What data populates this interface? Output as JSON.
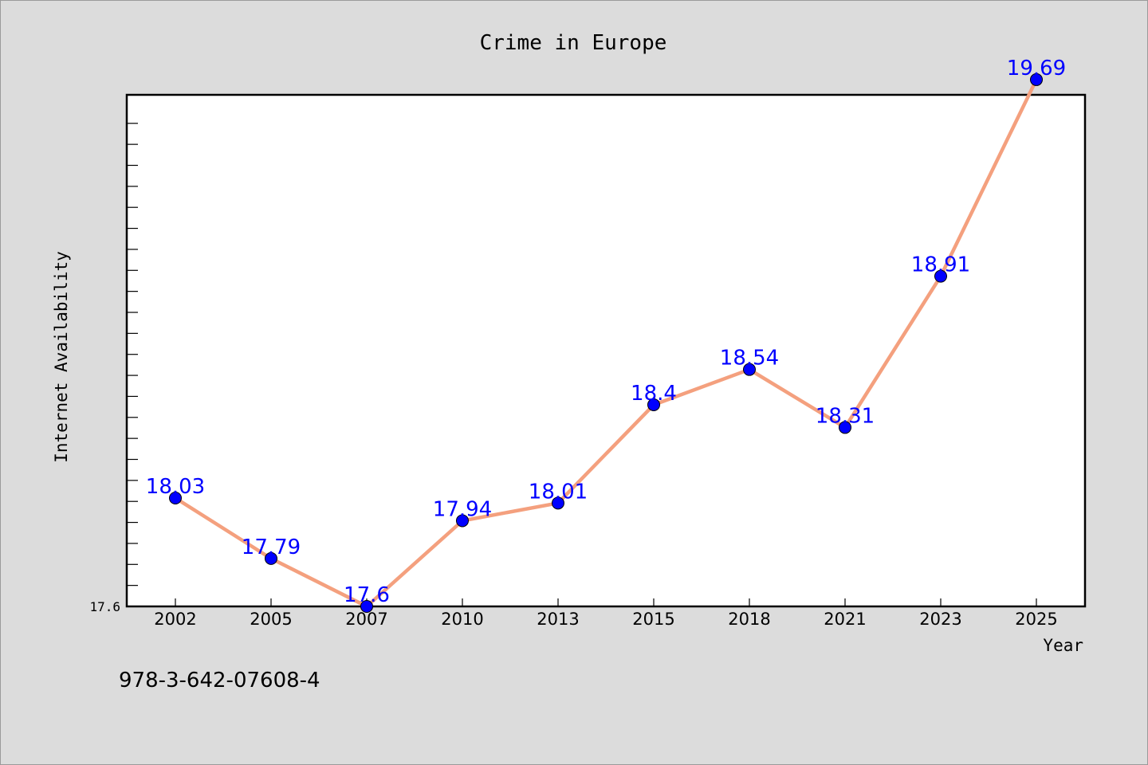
{
  "chart_data": {
    "type": "line",
    "title": "Crime in Europe",
    "xlabel": "Year",
    "ylabel": "Internet Availability",
    "categories": [
      "2002",
      "2005",
      "2007",
      "2010",
      "2013",
      "2015",
      "2018",
      "2021",
      "2023",
      "2025"
    ],
    "series": [
      {
        "values": [
          18.03,
          17.79,
          17.6,
          17.94,
          18.01,
          18.4,
          18.54,
          18.31,
          18.91,
          19.69
        ],
        "labels": [
          "18.03",
          "17.79",
          "17.6",
          "17.94",
          "18.01",
          "18.4",
          "18.54",
          "18.31",
          "18.91",
          "19.69"
        ]
      }
    ],
    "ylim": [
      17.6,
      20.0
    ],
    "yticks_labeled": [
      "17.6"
    ],
    "grid": false,
    "legend": "none",
    "colors": {
      "line": "#f4a07e",
      "marker": "#0000ff",
      "label": "#0000ff",
      "background": "#dcdcdc",
      "plot_area": "#ffffff"
    }
  },
  "footnote": "978-3-642-07608-4"
}
